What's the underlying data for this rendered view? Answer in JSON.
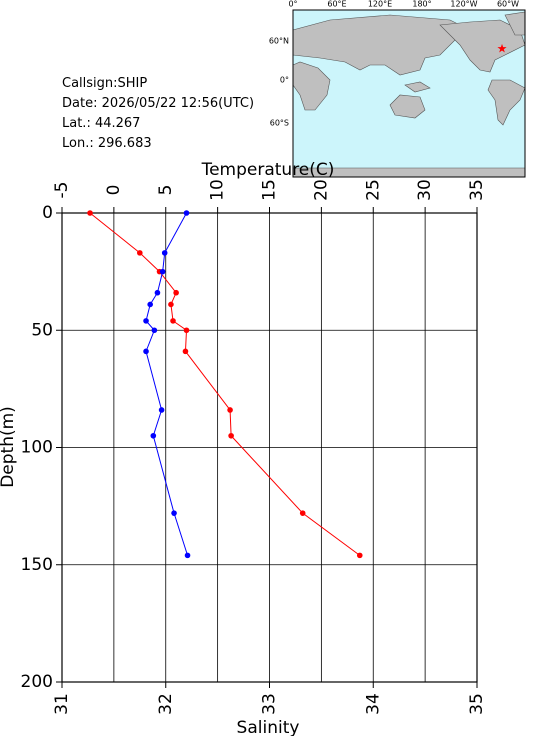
{
  "info": [
    "Callsign:SHIP",
    "Date:  2026/05/22 12:56(UTC)",
    "Lat.:  44.267",
    "Lon.:  296.683"
  ],
  "map": {
    "lon_labels": [
      "0°",
      "60°E",
      "120°E",
      "180°",
      "120°W",
      "60°W"
    ],
    "lat_labels": [
      "60°N",
      "0°",
      "60°S"
    ]
  },
  "chart_data": {
    "type": "line",
    "xlabel": "Temperature(C)",
    "x2label": "Salinity",
    "ylabel": "Depth(m)",
    "xlim": [
      -5,
      35
    ],
    "xticks": [
      -5,
      0,
      5,
      10,
      15,
      20,
      25,
      30,
      35
    ],
    "x2lim": [
      31,
      35
    ],
    "x2ticks": [
      31,
      32,
      33,
      34,
      35
    ],
    "ylim": [
      0,
      200
    ],
    "yticks": [
      0,
      50,
      100,
      150,
      200
    ],
    "y_inverted": true,
    "grid": true,
    "series": [
      {
        "color": "#ff0000",
        "axis": "x",
        "values": [
          -2.3,
          2.5,
          4.4,
          6.0,
          5.5,
          5.7,
          7.0,
          6.9,
          11.2,
          11.3,
          18.2,
          23.7
        ],
        "depth": [
          0,
          17,
          25,
          34,
          39,
          46,
          50,
          59,
          84,
          95,
          128,
          146
        ]
      },
      {
        "color": "#0000ff",
        "axis": "x2",
        "values": [
          32.2,
          31.99,
          31.97,
          31.92,
          31.85,
          31.81,
          31.89,
          31.81,
          31.96,
          31.88,
          32.08,
          32.21
        ],
        "depth": [
          0,
          17,
          25,
          34,
          39,
          46,
          50,
          59,
          84,
          95,
          128,
          146
        ]
      }
    ]
  }
}
